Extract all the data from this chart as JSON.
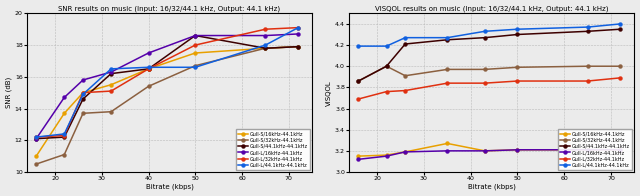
{
  "snr": {
    "title": "SNR results on music (Input: 16/32/44.1 kHz, Output: 44.1 kHz)",
    "xlabel": "Bitrate (kbps)",
    "ylabel": "SNR (dB)",
    "ylim": [
      10,
      20
    ],
    "xlim": [
      14,
      75
    ],
    "xticks": [
      20,
      30,
      40,
      50,
      60,
      70
    ],
    "yticks": [
      10,
      12,
      14,
      16,
      18,
      20
    ],
    "series": [
      {
        "label": "Gull-S/16kHz-44.1kHz",
        "color": "#E8A000",
        "marker": "o",
        "x": [
          16,
          22,
          26,
          32,
          40,
          50,
          65,
          72
        ],
        "y": [
          11.0,
          13.7,
          15.0,
          15.5,
          16.5,
          17.5,
          17.8,
          17.9
        ]
      },
      {
        "label": "Gull-S/32kHz-44.1kHz",
        "color": "#8B6040",
        "marker": "o",
        "x": [
          16,
          22,
          26,
          32,
          40,
          50,
          65,
          72
        ],
        "y": [
          10.5,
          11.1,
          13.7,
          13.8,
          15.4,
          16.7,
          17.8,
          17.9
        ]
      },
      {
        "label": "Gull-S/44.1kHz-44.1kHz",
        "color": "#3D0000",
        "marker": "o",
        "x": [
          16,
          22,
          26,
          32,
          40,
          50,
          65,
          72
        ],
        "y": [
          12.1,
          12.2,
          14.6,
          16.2,
          16.5,
          18.6,
          17.8,
          17.9
        ]
      },
      {
        "label": "Gull-L/16kHz-44.1kHz",
        "color": "#5500AA",
        "marker": "o",
        "x": [
          16,
          22,
          26,
          32,
          40,
          50,
          65,
          72
        ],
        "y": [
          12.1,
          14.7,
          15.8,
          16.3,
          17.5,
          18.6,
          18.6,
          18.7
        ]
      },
      {
        "label": "Gull-L/32kHz-44.1kHz",
        "color": "#E03010",
        "marker": "o",
        "x": [
          16,
          22,
          26,
          32,
          40,
          50,
          65,
          72
        ],
        "y": [
          12.2,
          12.3,
          15.0,
          15.1,
          16.5,
          18.0,
          19.0,
          19.1
        ]
      },
      {
        "label": "Gull-L/44.1kHz-44.1kHz",
        "color": "#1060E0",
        "marker": "o",
        "x": [
          16,
          22,
          26,
          32,
          40,
          50,
          65,
          72
        ],
        "y": [
          12.2,
          12.4,
          14.9,
          16.5,
          16.6,
          16.6,
          18.0,
          19.1
        ]
      }
    ]
  },
  "visqol": {
    "title": "VISQOL results on music (Input: 16/32/44.1 kHz, Output: 44.1 kHz)",
    "xlabel": "Bitrate (kbps)",
    "ylabel": "VISQOL",
    "ylim": [
      3.0,
      4.5
    ],
    "xlim": [
      14,
      75
    ],
    "xticks": [
      20,
      30,
      40,
      50,
      60,
      70
    ],
    "yticks": [
      3.0,
      3.2,
      3.4,
      3.6,
      3.8,
      4.0,
      4.2,
      4.4
    ],
    "series": [
      {
        "label": "Gull-S/16kHz-44.1kHz",
        "color": "#E8A000",
        "marker": "o",
        "x": [
          16,
          22,
          26,
          35,
          43,
          50,
          65,
          72
        ],
        "y": [
          3.15,
          3.16,
          3.19,
          3.27,
          3.2,
          3.21,
          3.21,
          3.21
        ]
      },
      {
        "label": "Gull-S/32kHz-44.1kHz",
        "color": "#8B6040",
        "marker": "o",
        "x": [
          16,
          22,
          26,
          35,
          43,
          50,
          65,
          72
        ],
        "y": [
          3.86,
          4.0,
          3.91,
          3.97,
          3.97,
          3.99,
          4.0,
          4.0
        ]
      },
      {
        "label": "Gull-S/44.1kHz-44.1kHz",
        "color": "#3D0000",
        "marker": "o",
        "x": [
          16,
          22,
          26,
          35,
          43,
          50,
          65,
          72
        ],
        "y": [
          3.86,
          4.0,
          4.21,
          4.25,
          4.27,
          4.3,
          4.33,
          4.35
        ]
      },
      {
        "label": "Gull-L/16kHz-44.1kHz",
        "color": "#5500AA",
        "marker": "o",
        "x": [
          16,
          22,
          26,
          35,
          43,
          50,
          65,
          72
        ],
        "y": [
          3.12,
          3.15,
          3.19,
          3.2,
          3.2,
          3.21,
          3.21,
          3.21
        ]
      },
      {
        "label": "Gull-L/32kHz-44.1kHz",
        "color": "#E03010",
        "marker": "o",
        "x": [
          16,
          22,
          26,
          35,
          43,
          50,
          65,
          72
        ],
        "y": [
          3.69,
          3.76,
          3.77,
          3.84,
          3.84,
          3.86,
          3.86,
          3.89
        ]
      },
      {
        "label": "Gull-L/44.1kHz-44.1kHz",
        "color": "#1060E0",
        "marker": "o",
        "x": [
          16,
          22,
          26,
          35,
          43,
          50,
          65,
          72
        ],
        "y": [
          4.19,
          4.19,
          4.27,
          4.27,
          4.33,
          4.35,
          4.37,
          4.4
        ]
      }
    ]
  }
}
